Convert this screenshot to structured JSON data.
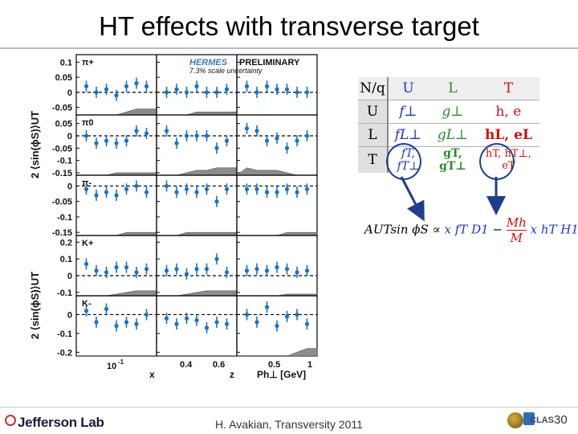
{
  "title": "HT effects with transverse target",
  "plot": {
    "hermes_label": "HERMES",
    "preliminary_label": "PRELIMINARY",
    "scale_note": "7.3% scale uncertainty",
    "ylabel_top": "2 ⟨sin(ϕS)⟩UT",
    "ylabel_bottom": "2 ⟨sin(ϕS)⟩UT",
    "rows": [
      {
        "label": "π+",
        "ticks": [
          "0.1",
          "0.05",
          "0",
          "-0.05"
        ],
        "ylim": [
          -0.075,
          0.125
        ]
      },
      {
        "label": "π0",
        "ticks": [
          "0.05",
          "0",
          "-0.05",
          "-0.1",
          "-0.15"
        ],
        "ylim": [
          -0.16,
          0.085
        ]
      },
      {
        "label": "π-",
        "ticks": [
          "0",
          "-0.05",
          "-0.1",
          "-0.15"
        ],
        "ylim": [
          -0.16,
          0.035
        ]
      },
      {
        "label": "K+",
        "ticks": [
          "0.2",
          "0.1",
          "0",
          "-0.1"
        ],
        "ylim": [
          -0.12,
          0.24
        ]
      },
      {
        "label": "K-",
        "ticks": [
          "0",
          "-0.1",
          "-0.2"
        ],
        "ylim": [
          -0.22,
          0.1
        ]
      }
    ],
    "x_ticks": {
      "col1": [
        {
          "label": "10",
          "sup": "-1"
        }
      ],
      "col2": [
        "0.4",
        "0.6"
      ],
      "col3": [
        "0.5",
        "1"
      ]
    },
    "x_labels": [
      "x",
      "z",
      "Ph⊥ [GeV]"
    ],
    "colors": {
      "marker": "#1a73c6",
      "band": "#8c8c8c"
    }
  },
  "chart_data": [
    {
      "type": "scatter",
      "row": "π+",
      "panel": "x",
      "values": [
        0.02,
        0.0,
        0.01,
        -0.01,
        0.02,
        0.03,
        0.02
      ],
      "band": [
        0.0,
        0.0,
        0.0,
        0.0,
        0.01,
        0.02,
        0.02
      ]
    },
    {
      "type": "scatter",
      "row": "π+",
      "panel": "z",
      "values": [
        0.0,
        0.01,
        0.0,
        0.02,
        0.0,
        0.0,
        0.01
      ],
      "band": [
        0.0,
        0.0,
        0.0,
        0.01,
        0.01,
        0.01,
        0.01
      ]
    },
    {
      "type": "scatter",
      "row": "π+",
      "panel": "Ph⊥",
      "values": [
        0.02,
        0.0,
        0.02,
        0.01,
        0.01,
        0.0,
        0.0
      ],
      "band": [
        0.0,
        0.0,
        0.0,
        0.0,
        0.0,
        0.0,
        0.0
      ]
    },
    {
      "type": "scatter",
      "row": "π0",
      "panel": "x",
      "values": [
        0.0,
        -0.03,
        -0.02,
        -0.03,
        -0.02,
        0.02,
        0.01
      ],
      "band": [
        0.0,
        0.0,
        0.0,
        0.01,
        0.01,
        0.01,
        0.01
      ]
    },
    {
      "type": "scatter",
      "row": "π0",
      "panel": "z",
      "values": [
        0.02,
        -0.03,
        0.0,
        0.0,
        0.0,
        -0.05,
        -0.02
      ],
      "band": [
        0.0,
        0.0,
        0.01,
        0.02,
        0.02,
        0.03,
        0.03
      ]
    },
    {
      "type": "scatter",
      "row": "π0",
      "panel": "Ph⊥",
      "values": [
        0.03,
        0.02,
        -0.02,
        -0.01,
        -0.05,
        -0.02,
        0.0
      ],
      "band": [
        0.03,
        0.02,
        0.02,
        0.02,
        0.01,
        0.0,
        0.0
      ]
    },
    {
      "type": "scatter",
      "row": "π-",
      "panel": "x",
      "values": [
        -0.01,
        -0.03,
        -0.02,
        -0.03,
        -0.01,
        0.0,
        -0.02
      ],
      "band": [
        0.0,
        0.0,
        0.0,
        0.0,
        0.01,
        0.01,
        0.01
      ]
    },
    {
      "type": "scatter",
      "row": "π-",
      "panel": "z",
      "values": [
        0.0,
        -0.02,
        -0.01,
        -0.02,
        -0.01,
        -0.05,
        -0.01
      ],
      "band": [
        0.0,
        0.0,
        0.01,
        0.01,
        0.01,
        0.01,
        0.01
      ]
    },
    {
      "type": "scatter",
      "row": "π-",
      "panel": "Ph⊥",
      "values": [
        -0.01,
        -0.01,
        -0.02,
        -0.02,
        -0.01,
        -0.02,
        -0.01
      ],
      "band": [
        0.0,
        0.0,
        0.0,
        0.0,
        0.01,
        0.01,
        0.01
      ]
    },
    {
      "type": "scatter",
      "row": "K+",
      "panel": "x",
      "values": [
        0.07,
        0.03,
        0.02,
        0.05,
        0.05,
        0.02,
        0.04
      ],
      "band": [
        0.0,
        0.0,
        0.0,
        0.01,
        0.02,
        0.03,
        0.03
      ]
    },
    {
      "type": "scatter",
      "row": "K+",
      "panel": "z",
      "values": [
        0.03,
        0.04,
        0.01,
        0.04,
        0.04,
        0.1,
        0.02
      ],
      "band": [
        0.0,
        0.0,
        0.01,
        0.02,
        0.03,
        0.03,
        0.03
      ]
    },
    {
      "type": "scatter",
      "row": "K+",
      "panel": "Ph⊥",
      "values": [
        0.03,
        0.04,
        0.03,
        0.05,
        0.04,
        0.02,
        0.03
      ],
      "band": [
        0.0,
        0.0,
        0.0,
        0.0,
        0.01,
        0.01,
        0.01
      ]
    },
    {
      "type": "scatter",
      "row": "K-",
      "panel": "x",
      "values": [
        0.02,
        -0.04,
        0.03,
        -0.06,
        -0.04,
        -0.05,
        0.0
      ],
      "band": [
        0.0,
        0.0,
        0.0,
        0.0,
        0.0,
        0.0,
        0.0
      ]
    },
    {
      "type": "scatter",
      "row": "K-",
      "panel": "z",
      "values": [
        -0.02,
        -0.05,
        -0.02,
        -0.03,
        -0.07,
        -0.04,
        -0.05
      ],
      "band": [
        0.0,
        0.0,
        0.0,
        0.0,
        0.0,
        0.0,
        0.0
      ]
    },
    {
      "type": "scatter",
      "row": "K-",
      "panel": "Ph⊥",
      "values": [
        0.0,
        -0.04,
        0.04,
        -0.06,
        -0.01,
        0.0,
        -0.05
      ],
      "band": [
        0.0,
        0.0,
        0.0,
        0.0,
        0.0,
        0.02,
        0.04
      ]
    }
  ],
  "table": {
    "header": [
      "N/q",
      "U",
      "L",
      "T"
    ],
    "rows": [
      {
        "head": "U",
        "cells": [
          "f⊥",
          "g⊥",
          "h, e"
        ]
      },
      {
        "head": "L",
        "cells": [
          "fL⊥",
          "gL⊥",
          "hL, eL"
        ]
      },
      {
        "head": "T",
        "cells": [
          "fT, fT⊥",
          "gT, gT⊥",
          "hT, hT⊥, eT"
        ]
      }
    ]
  },
  "formula": {
    "lhs": "AUTsin ϕS",
    "rel": "∝",
    "term1": "x fT D1",
    "minus": "−",
    "frac_num": "Mh",
    "frac_den": "M",
    "term2": "x hT H1⊥"
  },
  "footer": {
    "logo": "Jefferson Lab",
    "center": "H. Avakian, Transversity 2011",
    "clas": "CLAS",
    "slide_number": "30"
  }
}
